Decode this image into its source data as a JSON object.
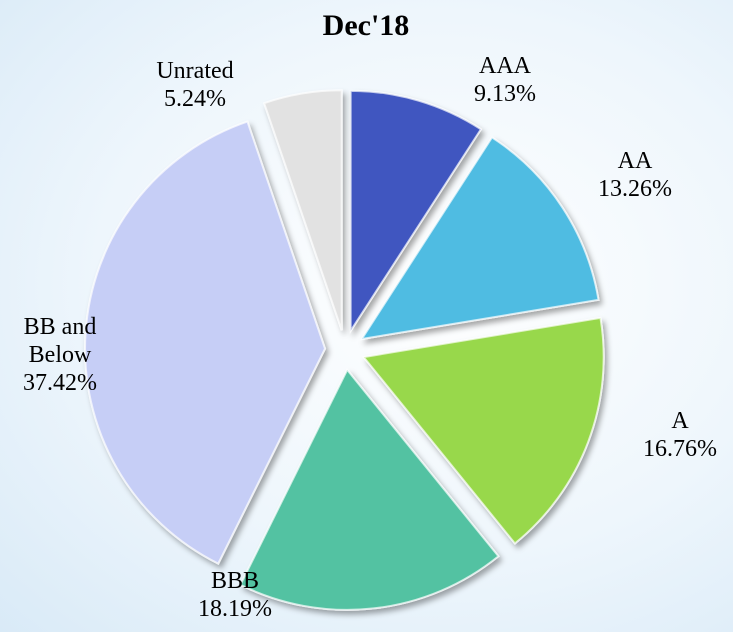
{
  "chart_data": {
    "type": "pie",
    "title": "Dec'18",
    "categories": [
      "AAA",
      "AA",
      "A",
      "BBB",
      "BB and Below",
      "Unrated"
    ],
    "values": [
      9.13,
      13.26,
      16.76,
      18.19,
      37.42,
      5.24
    ],
    "value_labels": [
      "9.13%",
      "13.26%",
      "16.76%",
      "18.19%",
      "37.42%",
      "5.24%"
    ],
    "colors": [
      "#3f56c0",
      "#50bce2",
      "#98d84c",
      "#52c2a2",
      "#c6cef6",
      "#e2e2e2"
    ]
  }
}
